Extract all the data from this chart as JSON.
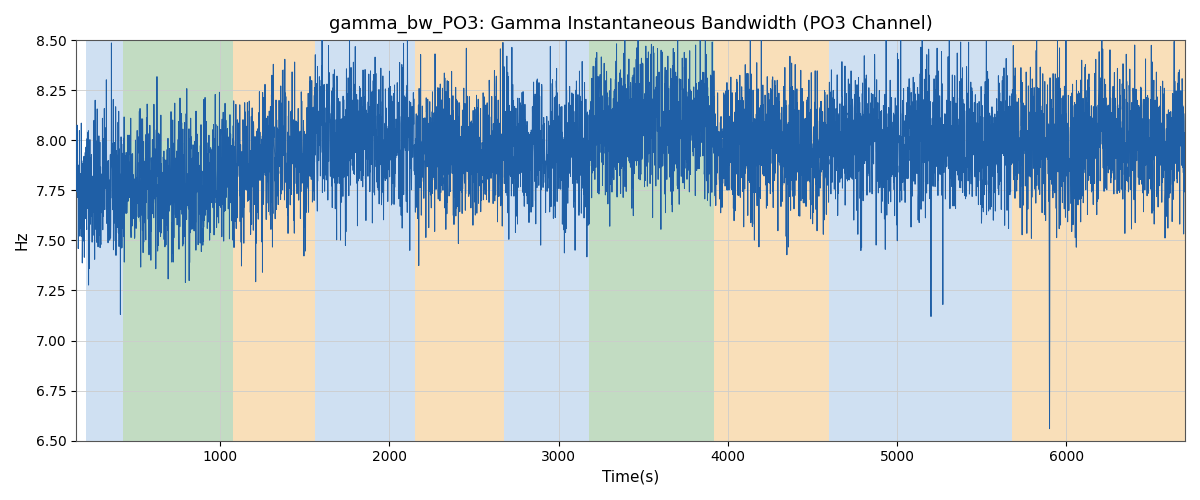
{
  "title": "gamma_bw_PO3: Gamma Instantaneous Bandwidth (PO3 Channel)",
  "xlabel": "Time(s)",
  "ylabel": "Hz",
  "xlim": [
    150,
    6700
  ],
  "ylim": [
    6.5,
    8.5
  ],
  "yticks": [
    6.5,
    6.75,
    7.0,
    7.25,
    7.5,
    7.75,
    8.0,
    8.25,
    8.5
  ],
  "line_color": "#1f5fa6",
  "line_width": 0.7,
  "background_color": "#ffffff",
  "grid_color": "#cccccc",
  "bands": [
    {
      "xmin": 210,
      "xmax": 430,
      "color": "#a8c8e8",
      "alpha": 0.55
    },
    {
      "xmin": 430,
      "xmax": 1080,
      "color": "#90c090",
      "alpha": 0.55
    },
    {
      "xmin": 1080,
      "xmax": 1560,
      "color": "#f5c580",
      "alpha": 0.55
    },
    {
      "xmin": 1560,
      "xmax": 2150,
      "color": "#a8c8e8",
      "alpha": 0.55
    },
    {
      "xmin": 2150,
      "xmax": 2680,
      "color": "#f5c580",
      "alpha": 0.55
    },
    {
      "xmin": 2680,
      "xmax": 3180,
      "color": "#a8c8e8",
      "alpha": 0.55
    },
    {
      "xmin": 3180,
      "xmax": 3920,
      "color": "#90c090",
      "alpha": 0.55
    },
    {
      "xmin": 3920,
      "xmax": 4600,
      "color": "#f5c580",
      "alpha": 0.55
    },
    {
      "xmin": 4600,
      "xmax": 5680,
      "color": "#a8c8e8",
      "alpha": 0.55
    },
    {
      "xmin": 5680,
      "xmax": 6700,
      "color": "#f5c580",
      "alpha": 0.55
    }
  ],
  "seed": 42,
  "n_points": 6550,
  "t_start": 150,
  "t_end": 6700
}
